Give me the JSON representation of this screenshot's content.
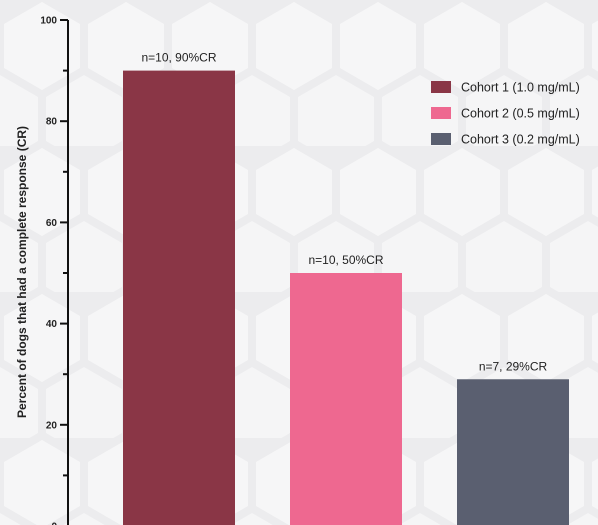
{
  "chart_data": {
    "type": "bar",
    "categories": [
      "Cohort 1 (1.0 mg/mL)",
      "Cohort 2 (0.5 mg/mL)",
      "Cohort 3 (0.2 mg/mL)"
    ],
    "values": [
      90,
      50,
      29
    ],
    "data_labels": [
      "n=10, 90%CR",
      "n=10, 50%CR",
      "n=7, 29%CR"
    ],
    "colors": [
      "#8a3646",
      "#ee6890",
      "#5a5f70"
    ],
    "title": "",
    "xlabel": "",
    "ylabel": "Percent of dogs that had a complete response (CR)",
    "ylim": [
      0,
      100
    ],
    "yticks": [
      0,
      20,
      40,
      60,
      80,
      100
    ],
    "legend": {
      "placement": "top-right",
      "entries": [
        "Cohort 1 (1.0 mg/mL)",
        "Cohort 2 (0.5 mg/mL)",
        "Cohort 3 (0.2 mg/mL)"
      ]
    },
    "grid": false
  }
}
